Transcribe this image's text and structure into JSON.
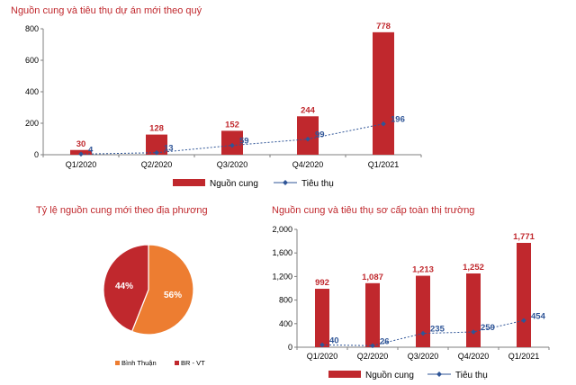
{
  "colors": {
    "title": "#c0282d",
    "bar": "#c0282d",
    "line": "#2f5597",
    "value_bar": "#c0282d",
    "value_line": "#2f5597",
    "pie_orange": "#ed7d31",
    "pie_red": "#c0282d",
    "text": "#000000",
    "axis": "#7f7f7f"
  },
  "chart_data": [
    {
      "type": "bar",
      "title": "Nguồn cung và tiêu thụ dự án mới theo quý",
      "categories": [
        "Q1/2020",
        "Q2/2020",
        "Q3/2020",
        "Q4/2020",
        "Q1/2021"
      ],
      "series": [
        {
          "name": "Nguồn cung",
          "type": "bar",
          "values": [
            30,
            128,
            152,
            244,
            778
          ]
        },
        {
          "name": "Tiêu thụ",
          "type": "line",
          "values": [
            4,
            13,
            59,
            99,
            196
          ]
        }
      ],
      "ylim": [
        0,
        800
      ],
      "yticks": [
        0,
        200,
        400,
        600,
        800
      ],
      "ytick_labels": [
        "0",
        "200",
        "400",
        "600",
        "800"
      ],
      "value_labels_bar": [
        "30",
        "128",
        "152",
        "244",
        "778"
      ],
      "value_labels_line": [
        "4",
        "13",
        "59",
        "99",
        "196"
      ],
      "legend_position": "bottom",
      "grid": false
    },
    {
      "type": "pie",
      "title": "Tỷ lệ nguồn cung mới theo địa phương",
      "slices": [
        {
          "label": "Bình Thuận",
          "value": 56,
          "text": "56%",
          "color": "#ed7d31"
        },
        {
          "label": "BR - VT",
          "value": 44,
          "text": "44%",
          "color": "#c0282d"
        }
      ],
      "legend_position": "bottom"
    },
    {
      "type": "bar",
      "title": "Nguồn cung và tiêu thụ sơ cấp toàn thị trường",
      "categories": [
        "Q1/2020",
        "Q2/2020",
        "Q3/2020",
        "Q4/2020",
        "Q1/2021"
      ],
      "series": [
        {
          "name": "Nguồn cung",
          "type": "bar",
          "values": [
            992,
            1087,
            1213,
            1252,
            1771
          ]
        },
        {
          "name": "Tiêu thụ",
          "type": "line",
          "values": [
            40,
            26,
            235,
            259,
            454
          ]
        }
      ],
      "ylim": [
        0,
        2000
      ],
      "yticks": [
        0,
        400,
        800,
        1200,
        1600,
        2000
      ],
      "ytick_labels": [
        "0",
        "400",
        "800",
        "1,200",
        "1,600",
        "2,000"
      ],
      "value_labels_bar": [
        "992",
        "1,087",
        "1,213",
        "1,252",
        "1,771"
      ],
      "value_labels_line": [
        "40",
        "26",
        "235",
        "259",
        "454"
      ],
      "legend_position": "bottom",
      "grid": false
    }
  ]
}
